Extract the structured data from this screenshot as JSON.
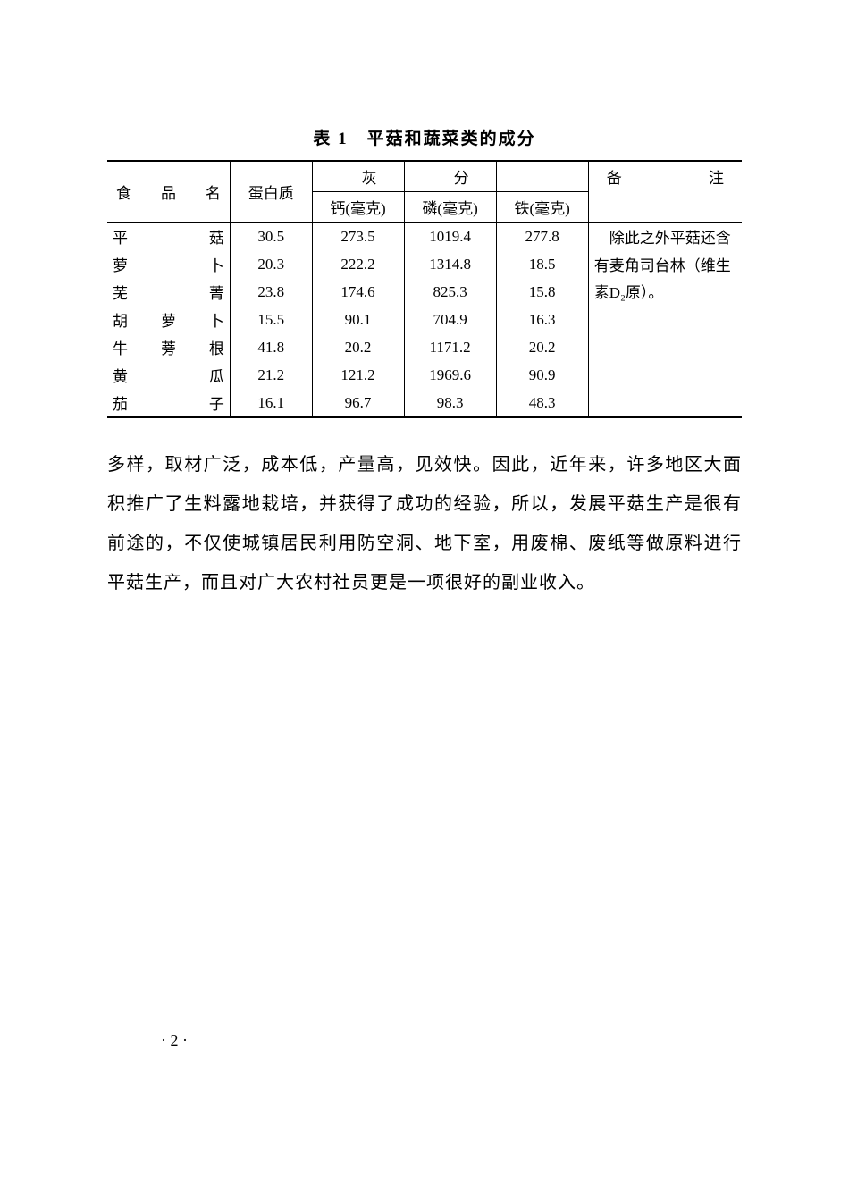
{
  "table": {
    "title": "表 1　平菇和蔬菜类的成分",
    "headers": {
      "name": "食 品 名",
      "protein": "蛋白质",
      "ash_group": "灰",
      "ash_group2": "分",
      "calcium": "钙(毫克)",
      "phosphorus": "磷(毫克)",
      "iron": "铁(毫克)",
      "note": "备　　注"
    },
    "rows": [
      {
        "name": "平　　菇",
        "protein": "30.5",
        "ca": "273.5",
        "p": "1019.4",
        "fe": "277.8"
      },
      {
        "name": "萝　　卜",
        "protein": "20.3",
        "ca": "222.2",
        "p": "1314.8",
        "fe": "18.5"
      },
      {
        "name": "芜　　菁",
        "protein": "23.8",
        "ca": "174.6",
        "p": "825.3",
        "fe": "15.8"
      },
      {
        "name": "胡 萝 卜",
        "protein": "15.5",
        "ca": "90.1",
        "p": "704.9",
        "fe": "16.3"
      },
      {
        "name": "牛 蒡 根",
        "protein": "41.8",
        "ca": "20.2",
        "p": "1171.2",
        "fe": "20.2"
      },
      {
        "name": "黄　　瓜",
        "protein": "21.2",
        "ca": "121.2",
        "p": "1969.6",
        "fe": "90.9"
      },
      {
        "name": "茄　　子",
        "protein": "16.1",
        "ca": "96.7",
        "p": "98.3",
        "fe": "48.3"
      }
    ],
    "note_text": "　除此之外平菇还含有麦角司台林（维生素D₂原）。"
  },
  "body_paragraph": "多样，取材广泛，成本低，产量高，见效快。因此，近年来，许多地区大面积推广了生料露地栽培，并获得了成功的经验，所以，发展平菇生产是很有前途的，不仅使城镇居民利用防空洞、地下室，用废棉、废纸等做原料进行平菇生产，而且对广大农村社员更是一项很好的副业收入。",
  "page_number": "·  2  ·"
}
